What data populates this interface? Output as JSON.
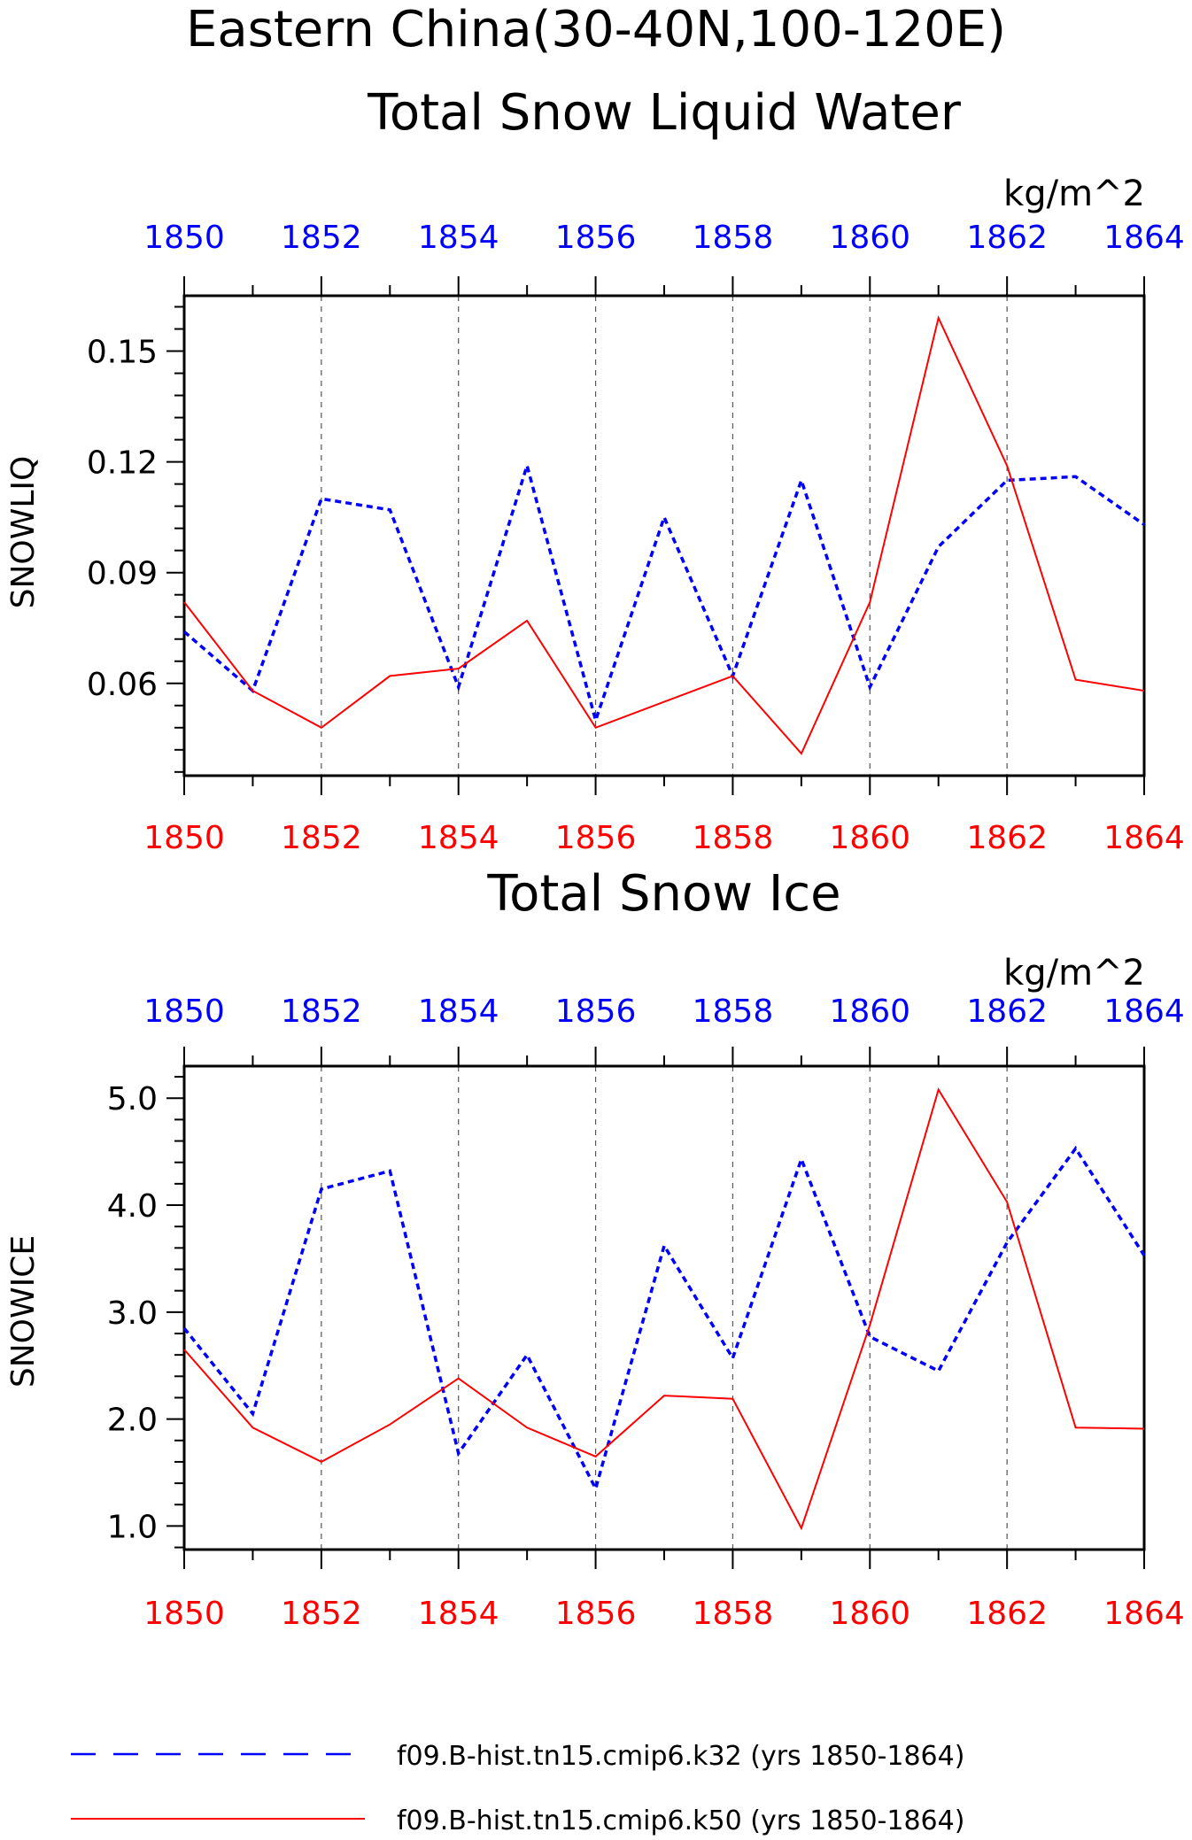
{
  "title_line1": "Eastern China(30-40N,100-120E)",
  "legend": [
    {
      "label": "f09.B-hist.tn15.cmip6.k32 (yrs 1850-1864)",
      "color": "#0000ff",
      "style": "dashed"
    },
    {
      "label": "f09.B-hist.tn15.cmip6.k50 (yrs 1850-1864)",
      "color": "#ff0000",
      "style": "solid"
    }
  ],
  "colors": {
    "k32": "#0000ff",
    "k50": "#ff0000",
    "axis": "#000000",
    "grid": "#555555"
  },
  "chart_data": [
    {
      "type": "line",
      "title": "Total Snow Liquid Water",
      "units": "kg/m^2",
      "ylabel": "SNOWLIQ",
      "xlim": [
        1850,
        1864
      ],
      "ylim": [
        0.035,
        0.165
      ],
      "yticks": [
        "0.06",
        "0.09",
        "0.12",
        "0.15"
      ],
      "x_top_ticks": [
        "1850",
        "1852",
        "1854",
        "1856",
        "1858",
        "1860",
        "1862",
        "1864"
      ],
      "x_bottom_ticks": [
        "1850",
        "1852",
        "1854",
        "1856",
        "1858",
        "1860",
        "1862",
        "1864"
      ],
      "x": [
        1850,
        1851,
        1852,
        1853,
        1854,
        1855,
        1856,
        1857,
        1858,
        1859,
        1860,
        1861,
        1862,
        1863,
        1864
      ],
      "grid": "vertical dashed at even years",
      "series": [
        {
          "name": "f09.B-hist.tn15.cmip6.k32 (yrs 1850-1864)",
          "values": [
            0.074,
            0.058,
            0.11,
            0.107,
            0.059,
            0.119,
            0.05,
            0.105,
            0.062,
            0.115,
            0.059,
            0.097,
            0.115,
            0.116,
            0.103
          ]
        },
        {
          "name": "f09.B-hist.tn15.cmip6.k50 (yrs 1850-1864)",
          "values": [
            0.082,
            0.058,
            0.048,
            0.062,
            0.064,
            0.077,
            0.048,
            0.055,
            0.062,
            0.041,
            0.082,
            0.159,
            0.119,
            0.061,
            0.058
          ]
        }
      ]
    },
    {
      "type": "line",
      "title": "Total Snow Ice",
      "units": "kg/m^2",
      "ylabel": "SNOWICE",
      "xlim": [
        1850,
        1864
      ],
      "ylim": [
        0.78,
        5.3
      ],
      "yticks": [
        "1.0",
        "2.0",
        "3.0",
        "4.0",
        "5.0"
      ],
      "x_top_ticks": [
        "1850",
        "1852",
        "1854",
        "1856",
        "1858",
        "1860",
        "1862",
        "1864"
      ],
      "x_bottom_ticks": [
        "1850",
        "1852",
        "1854",
        "1856",
        "1858",
        "1860",
        "1862",
        "1864"
      ],
      "x": [
        1850,
        1851,
        1852,
        1853,
        1854,
        1855,
        1856,
        1857,
        1858,
        1859,
        1860,
        1861,
        1862,
        1863,
        1864
      ],
      "grid": "vertical dashed at even years",
      "series": [
        {
          "name": "f09.B-hist.tn15.cmip6.k32 (yrs 1850-1864)",
          "values": [
            2.85,
            2.05,
            4.15,
            4.32,
            1.68,
            2.6,
            1.35,
            3.62,
            2.57,
            4.43,
            2.77,
            2.45,
            3.65,
            4.53,
            3.53
          ]
        },
        {
          "name": "f09.B-hist.tn15.cmip6.k50 (yrs 1850-1864)",
          "values": [
            2.65,
            1.92,
            1.6,
            1.95,
            2.38,
            1.92,
            1.65,
            2.22,
            2.19,
            0.98,
            2.88,
            5.08,
            4.03,
            1.92,
            1.91
          ]
        }
      ]
    }
  ]
}
